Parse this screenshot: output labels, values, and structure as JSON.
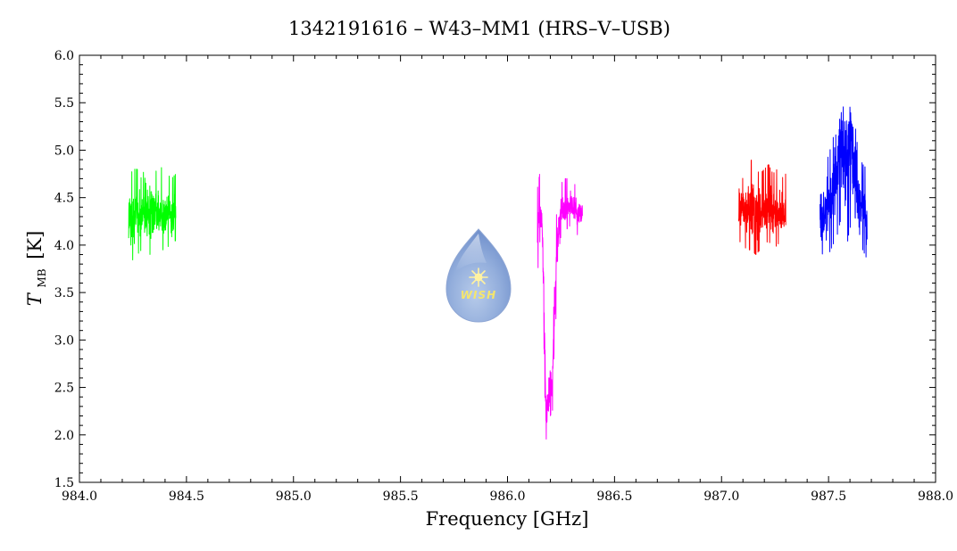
{
  "chart_data": {
    "type": "line",
    "title": "1342191616 – W43–MM1 (HRS–V–USB)",
    "xlabel": "Frequency [GHz]",
    "ylabel": {
      "symbol": "T",
      "subscript": "MB",
      "unit": "[K]"
    },
    "xlim": [
      984.0,
      988.0
    ],
    "ylim": [
      1.5,
      6.0
    ],
    "x_ticks": [
      984.0,
      984.5,
      985.0,
      985.5,
      986.0,
      986.5,
      987.0,
      987.5,
      988.0
    ],
    "x_tick_labels": [
      "984.0",
      "984.5",
      "985.0",
      "985.5",
      "986.0",
      "986.5",
      "987.0",
      "987.5",
      "988.0"
    ],
    "y_ticks": [
      1.5,
      2.0,
      2.5,
      3.0,
      3.5,
      4.0,
      4.5,
      5.0,
      5.5,
      6.0
    ],
    "y_tick_labels": [
      "1.5",
      "2.0",
      "2.5",
      "3.0",
      "3.5",
      "4.0",
      "4.5",
      "5.0",
      "5.5",
      "6.0"
    ],
    "grid": false,
    "legend": "none",
    "series": [
      {
        "color": "#00ff00",
        "x": [
          984.23,
          984.25,
          984.27,
          984.29,
          984.31,
          984.33,
          984.35,
          984.37,
          984.39,
          984.41,
          984.43,
          984.45
        ],
        "y": [
          4.3,
          4.25,
          4.35,
          4.3,
          4.4,
          4.35,
          4.3,
          4.35,
          4.3,
          4.35,
          4.3,
          4.35
        ],
        "y_low": [
          3.75,
          3.85,
          3.9,
          3.95,
          3.95,
          3.9,
          3.8,
          3.95,
          3.95,
          3.98,
          4.0,
          4.05
        ],
        "y_high": [
          4.7,
          4.8,
          4.8,
          4.7,
          4.85,
          4.9,
          4.8,
          4.75,
          4.85,
          4.75,
          4.7,
          4.75
        ]
      },
      {
        "color": "#ff00ff",
        "x": [
          986.14,
          986.15,
          986.16,
          986.17,
          986.18,
          986.19,
          986.2,
          986.21,
          986.22,
          986.23,
          986.24,
          986.25,
          986.27,
          986.29,
          986.31,
          986.33,
          986.35
        ],
        "y": [
          4.1,
          4.4,
          4.3,
          3.5,
          2.2,
          2.3,
          2.5,
          2.6,
          3.2,
          4.0,
          4.2,
          4.35,
          4.4,
          4.45,
          4.4,
          4.35,
          4.3
        ],
        "y_low": [
          3.65,
          4.05,
          3.9,
          2.8,
          1.95,
          2.0,
          2.2,
          2.25,
          2.6,
          3.6,
          3.95,
          4.1,
          4.15,
          4.2,
          4.15,
          4.1,
          4.1
        ],
        "y_high": [
          4.6,
          4.75,
          4.5,
          3.9,
          2.6,
          2.7,
          2.9,
          3.0,
          3.6,
          4.4,
          4.5,
          4.65,
          4.7,
          4.7,
          4.65,
          4.6,
          4.55
        ]
      },
      {
        "color": "#ff0000",
        "x": [
          987.08,
          987.1,
          987.12,
          987.14,
          987.16,
          987.18,
          987.2,
          987.22,
          987.24,
          987.26,
          987.28,
          987.3
        ],
        "y": [
          4.35,
          4.4,
          4.35,
          4.4,
          4.35,
          4.3,
          4.35,
          4.4,
          4.35,
          4.3,
          4.35,
          4.3
        ],
        "y_low": [
          4.05,
          4.0,
          3.95,
          3.95,
          3.9,
          3.95,
          4.0,
          4.05,
          3.95,
          4.0,
          4.05,
          4.05
        ],
        "y_high": [
          4.75,
          4.7,
          4.8,
          4.9,
          4.8,
          4.75,
          4.8,
          4.85,
          4.75,
          4.8,
          4.7,
          4.75
        ]
      },
      {
        "color": "#0000ff",
        "x": [
          987.46,
          987.48,
          987.5,
          987.52,
          987.54,
          987.56,
          987.58,
          987.6,
          987.62,
          987.64,
          987.66,
          987.68
        ],
        "y": [
          4.3,
          4.35,
          4.45,
          4.55,
          4.9,
          5.2,
          4.75,
          5.3,
          4.9,
          4.5,
          4.4,
          4.3
        ],
        "y_low": [
          3.85,
          3.95,
          3.9,
          4.0,
          4.1,
          4.3,
          3.9,
          4.2,
          4.0,
          3.9,
          3.95,
          3.85
        ],
        "y_high": [
          4.75,
          4.8,
          4.95,
          5.1,
          5.45,
          5.65,
          5.2,
          5.75,
          5.35,
          4.95,
          4.85,
          4.8
        ]
      }
    ],
    "logo_text": "WISH"
  }
}
